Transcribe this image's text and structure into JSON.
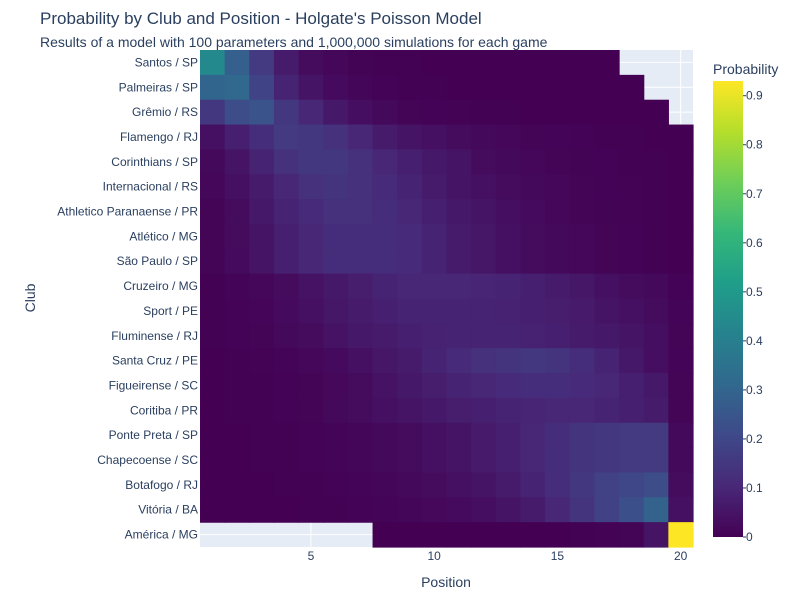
{
  "title": "Probability by Club and Position - Holgate's Poisson Model",
  "subtitle": "Results of a model with 100 parameters and 1,000,000 simulations for each game",
  "chart_data": {
    "type": "heatmap",
    "xlabel": "Position",
    "ylabel": "Club",
    "colorbar_title": "Probability",
    "colorscale": "Viridis",
    "colorbar_range": [
      0,
      0.93
    ],
    "colorbar_ticks": [
      "0",
      "0.1",
      "0.2",
      "0.3",
      "0.4",
      "0.5",
      "0.6",
      "0.7",
      "0.8",
      "0.9"
    ],
    "x": [
      1,
      2,
      3,
      4,
      5,
      6,
      7,
      8,
      9,
      10,
      11,
      12,
      13,
      14,
      15,
      16,
      17,
      18,
      19,
      20
    ],
    "x_ticks": [
      5,
      10,
      15,
      20
    ],
    "clubs": [
      "Santos / SP",
      "Palmeiras / SP",
      "Grêmio / RS",
      "Flamengo / RJ",
      "Corinthians / SP",
      "Internacional / RS",
      "Athletico Paranaense / PR",
      "Atlético / MG",
      "São Paulo / SP",
      "Cruzeiro / MG",
      "Sport / PE",
      "Fluminense / RJ",
      "Santa Cruz / PE",
      "Figueirense / SC",
      "Coritiba / PR",
      "Ponte Preta / SP",
      "Chapecoense / SC",
      "Botafogo / RJ",
      "Vitória / BA",
      "América / MG"
    ],
    "z": [
      [
        0.44,
        0.28,
        0.16,
        0.07,
        0.03,
        0.015,
        0.007,
        0.003,
        0.002,
        0.001,
        0.001,
        0.001,
        0.001,
        0.001,
        0.001,
        0.001,
        0.001,
        null,
        null,
        null
      ],
      [
        0.3,
        0.31,
        0.19,
        0.09,
        0.05,
        0.025,
        0.012,
        0.006,
        0.003,
        0.002,
        0.001,
        0.001,
        0.001,
        0.001,
        0.001,
        0.001,
        0.001,
        0.001,
        null,
        null
      ],
      [
        0.15,
        0.22,
        0.24,
        0.15,
        0.1,
        0.06,
        0.035,
        0.02,
        0.01,
        0.006,
        0.004,
        0.003,
        0.002,
        0.001,
        0.001,
        0.001,
        0.001,
        0.001,
        0.001,
        null
      ],
      [
        0.04,
        0.08,
        0.12,
        0.16,
        0.15,
        0.13,
        0.1,
        0.07,
        0.05,
        0.04,
        0.03,
        0.02,
        0.015,
        0.01,
        0.008,
        0.005,
        0.003,
        0.002,
        0.001,
        0.001
      ],
      [
        0.02,
        0.05,
        0.09,
        0.13,
        0.15,
        0.15,
        0.13,
        0.1,
        0.08,
        0.06,
        0.05,
        0.03,
        0.02,
        0.015,
        0.01,
        0.007,
        0.005,
        0.003,
        0.002,
        0.001
      ],
      [
        0.015,
        0.04,
        0.07,
        0.1,
        0.13,
        0.14,
        0.13,
        0.11,
        0.09,
        0.07,
        0.05,
        0.04,
        0.03,
        0.02,
        0.015,
        0.01,
        0.006,
        0.004,
        0.002,
        0.001
      ],
      [
        0.01,
        0.03,
        0.06,
        0.09,
        0.11,
        0.13,
        0.13,
        0.12,
        0.1,
        0.08,
        0.06,
        0.05,
        0.035,
        0.025,
        0.015,
        0.01,
        0.007,
        0.004,
        0.002,
        0.001
      ],
      [
        0.01,
        0.03,
        0.05,
        0.08,
        0.1,
        0.12,
        0.12,
        0.12,
        0.11,
        0.09,
        0.07,
        0.055,
        0.04,
        0.03,
        0.02,
        0.015,
        0.01,
        0.006,
        0.003,
        0.001
      ],
      [
        0.01,
        0.025,
        0.05,
        0.08,
        0.1,
        0.12,
        0.12,
        0.12,
        0.11,
        0.09,
        0.07,
        0.055,
        0.04,
        0.03,
        0.02,
        0.015,
        0.01,
        0.006,
        0.003,
        0.001
      ],
      [
        0.003,
        0.008,
        0.015,
        0.03,
        0.045,
        0.06,
        0.075,
        0.09,
        0.1,
        0.1,
        0.1,
        0.095,
        0.09,
        0.08,
        0.07,
        0.055,
        0.04,
        0.03,
        0.02,
        0.005
      ],
      [
        0.003,
        0.006,
        0.013,
        0.025,
        0.04,
        0.055,
        0.07,
        0.08,
        0.09,
        0.09,
        0.09,
        0.09,
        0.085,
        0.08,
        0.075,
        0.065,
        0.05,
        0.04,
        0.03,
        0.008
      ],
      [
        0.002,
        0.005,
        0.01,
        0.02,
        0.03,
        0.045,
        0.06,
        0.07,
        0.08,
        0.085,
        0.09,
        0.09,
        0.09,
        0.085,
        0.08,
        0.07,
        0.06,
        0.05,
        0.035,
        0.01
      ],
      [
        0.001,
        0.002,
        0.004,
        0.008,
        0.015,
        0.025,
        0.04,
        0.055,
        0.07,
        0.09,
        0.11,
        0.13,
        0.14,
        0.15,
        0.14,
        0.12,
        0.09,
        0.06,
        0.035,
        0.008
      ],
      [
        0.001,
        0.002,
        0.003,
        0.006,
        0.01,
        0.018,
        0.03,
        0.045,
        0.06,
        0.075,
        0.09,
        0.1,
        0.11,
        0.12,
        0.12,
        0.11,
        0.1,
        0.08,
        0.06,
        0.01
      ],
      [
        0.001,
        0.002,
        0.003,
        0.006,
        0.01,
        0.02,
        0.03,
        0.04,
        0.05,
        0.06,
        0.075,
        0.08,
        0.09,
        0.095,
        0.1,
        0.1,
        0.09,
        0.08,
        0.07,
        0.01
      ],
      [
        0.001,
        0.001,
        0.002,
        0.003,
        0.005,
        0.008,
        0.012,
        0.02,
        0.03,
        0.04,
        0.05,
        0.065,
        0.08,
        0.1,
        0.12,
        0.14,
        0.15,
        0.16,
        0.16,
        0.02
      ],
      [
        0.001,
        0.001,
        0.002,
        0.003,
        0.005,
        0.008,
        0.012,
        0.02,
        0.03,
        0.04,
        0.05,
        0.065,
        0.08,
        0.1,
        0.12,
        0.14,
        0.15,
        0.16,
        0.16,
        0.02
      ],
      [
        0.001,
        0.001,
        0.001,
        0.002,
        0.003,
        0.005,
        0.008,
        0.012,
        0.02,
        0.03,
        0.04,
        0.05,
        0.07,
        0.09,
        0.12,
        0.15,
        0.18,
        0.2,
        0.22,
        0.03
      ],
      [
        0.001,
        0.001,
        0.001,
        0.001,
        0.002,
        0.003,
        0.005,
        0.008,
        0.012,
        0.018,
        0.025,
        0.035,
        0.05,
        0.07,
        0.1,
        0.14,
        0.18,
        0.23,
        0.29,
        0.04
      ],
      [
        null,
        null,
        null,
        null,
        null,
        null,
        null,
        0.001,
        0.001,
        0.001,
        0.001,
        0.001,
        0.001,
        0.001,
        0.001,
        0.002,
        0.004,
        0.01,
        0.05,
        0.93
      ]
    ]
  }
}
